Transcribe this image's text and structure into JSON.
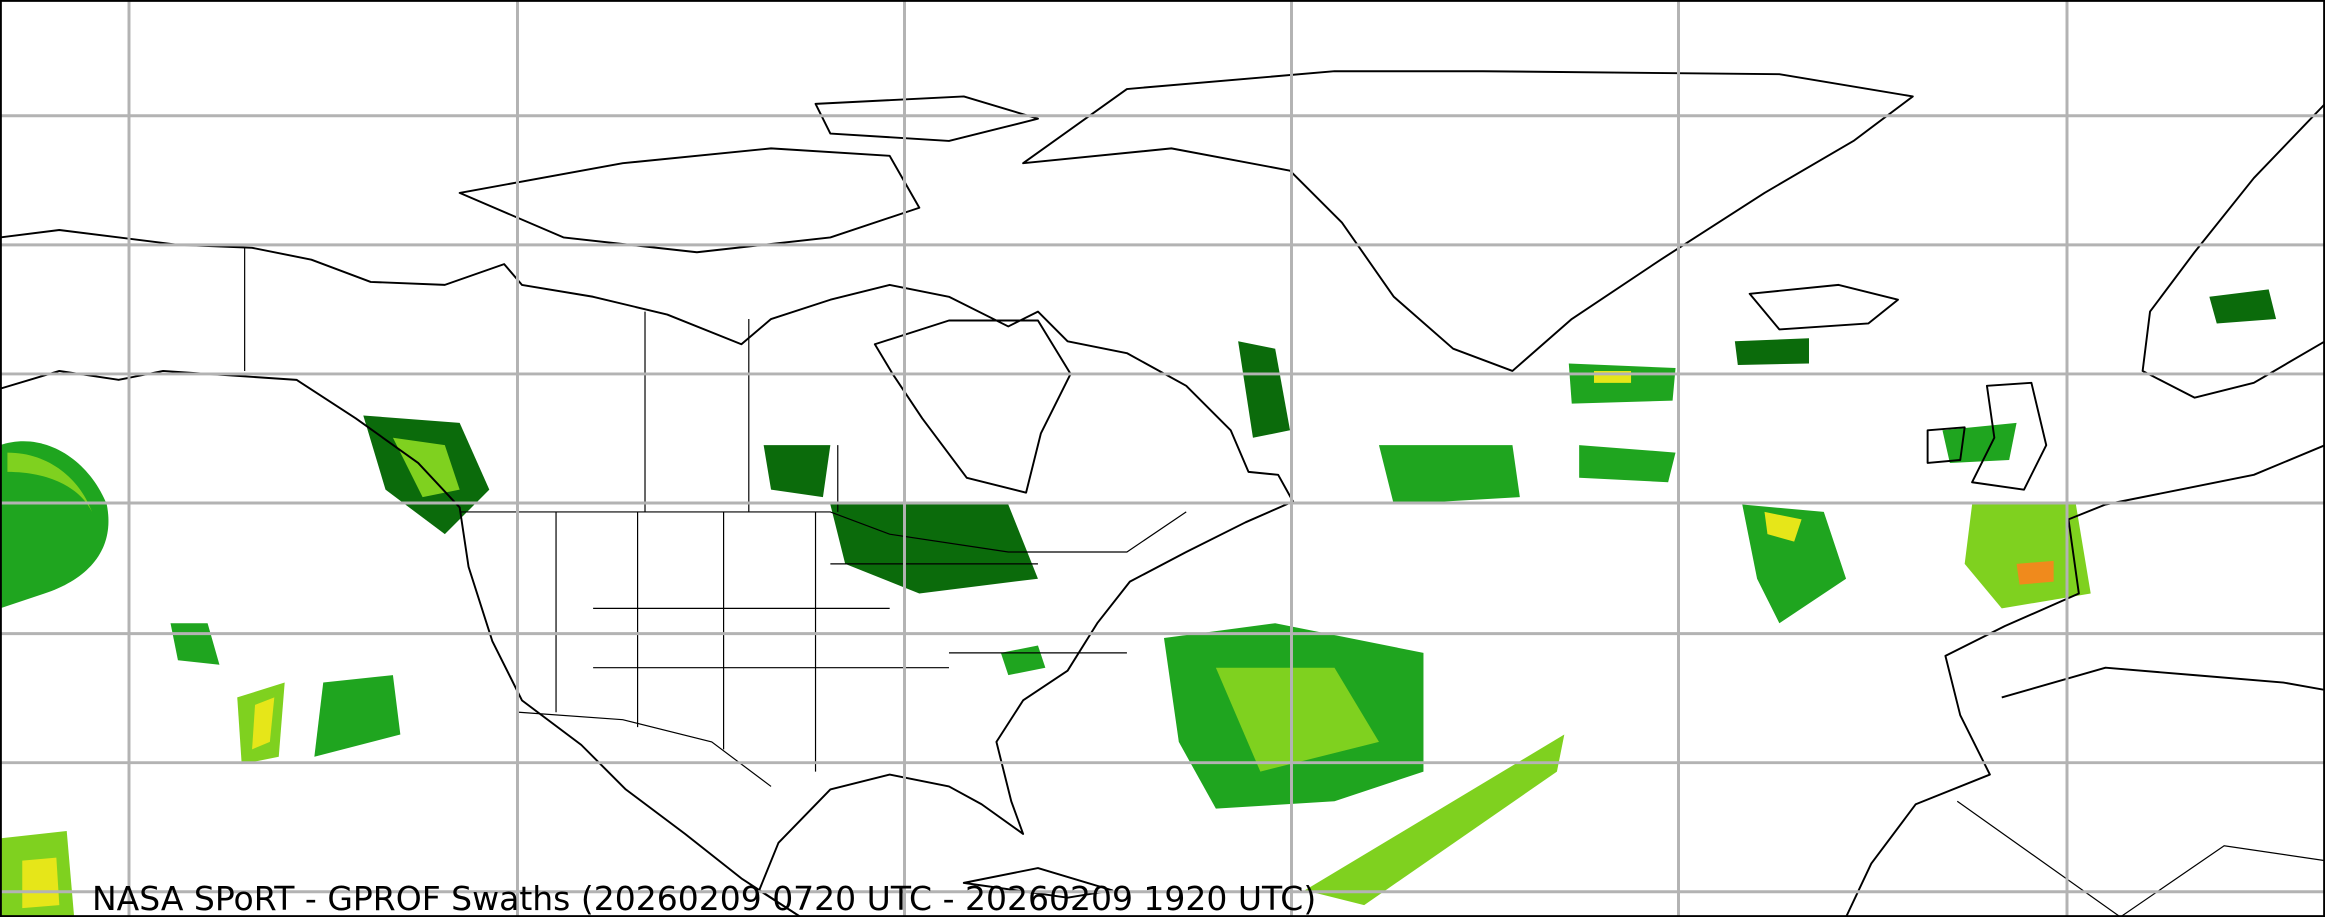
{
  "map": {
    "title": "NASA SPoRT - GPROF Swaths (20260209 0720 UTC - 20260209 1920 UTC)",
    "projection": "equirectangular",
    "gridlines": true,
    "gridline_color": "#b3b3b3",
    "coastline_color": "#000000",
    "precip_colors": [
      "#0b6b0b",
      "#1fa51f",
      "#7fd11f",
      "#e6e619",
      "#f08a1c"
    ]
  }
}
